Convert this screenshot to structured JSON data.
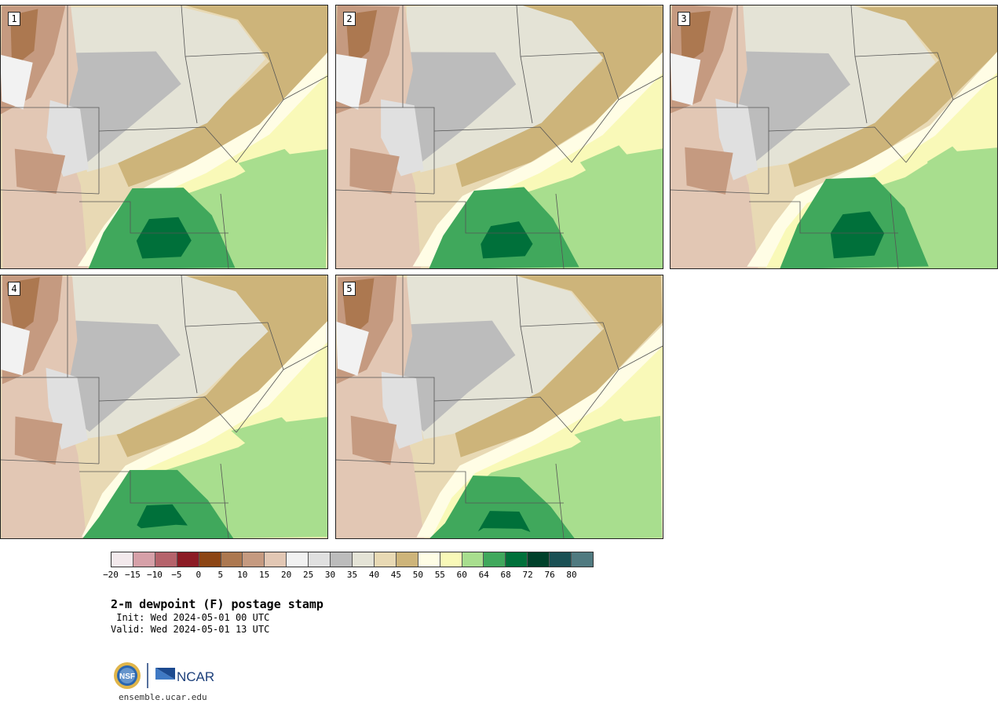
{
  "panels": [
    {
      "label": "1",
      "variant": 0
    },
    {
      "label": "2",
      "variant": 1
    },
    {
      "label": "3",
      "variant": 2
    },
    {
      "label": "4",
      "variant": 3
    },
    {
      "label": "5",
      "variant": 4
    }
  ],
  "colorbar": {
    "colors": [
      "#f3e9ec",
      "#d6a0a8",
      "#b5636b",
      "#8c1c25",
      "#8c4514",
      "#ac7850",
      "#c59a80",
      "#e2c7b4",
      "#f2f2f2",
      "#e0e0e0",
      "#bcbcbc",
      "#e4e3d6",
      "#e8d9b4",
      "#cdb47a",
      "#fffde5",
      "#f9f9b8",
      "#a8de8e",
      "#40a85c",
      "#00703a",
      "#00402a",
      "#1a5054",
      "#507a80"
    ],
    "tick_labels": [
      "−20",
      "−15",
      "−10",
      "−5",
      "0",
      "5",
      "10",
      "15",
      "20",
      "25",
      "30",
      "35",
      "40",
      "45",
      "50",
      "55",
      "60",
      "64",
      "68",
      "72",
      "76",
      "80"
    ]
  },
  "info": {
    "title": "2-m dewpoint (F) postage stamp",
    "init": " Init: Wed 2024-05-01 00 UTC",
    "valid": "Valid: Wed 2024-05-01 13 UTC"
  },
  "logos": {
    "nsf": "NSF",
    "ncar": "NCAR"
  },
  "footer": {
    "url": "ensemble.ucar.edu"
  }
}
